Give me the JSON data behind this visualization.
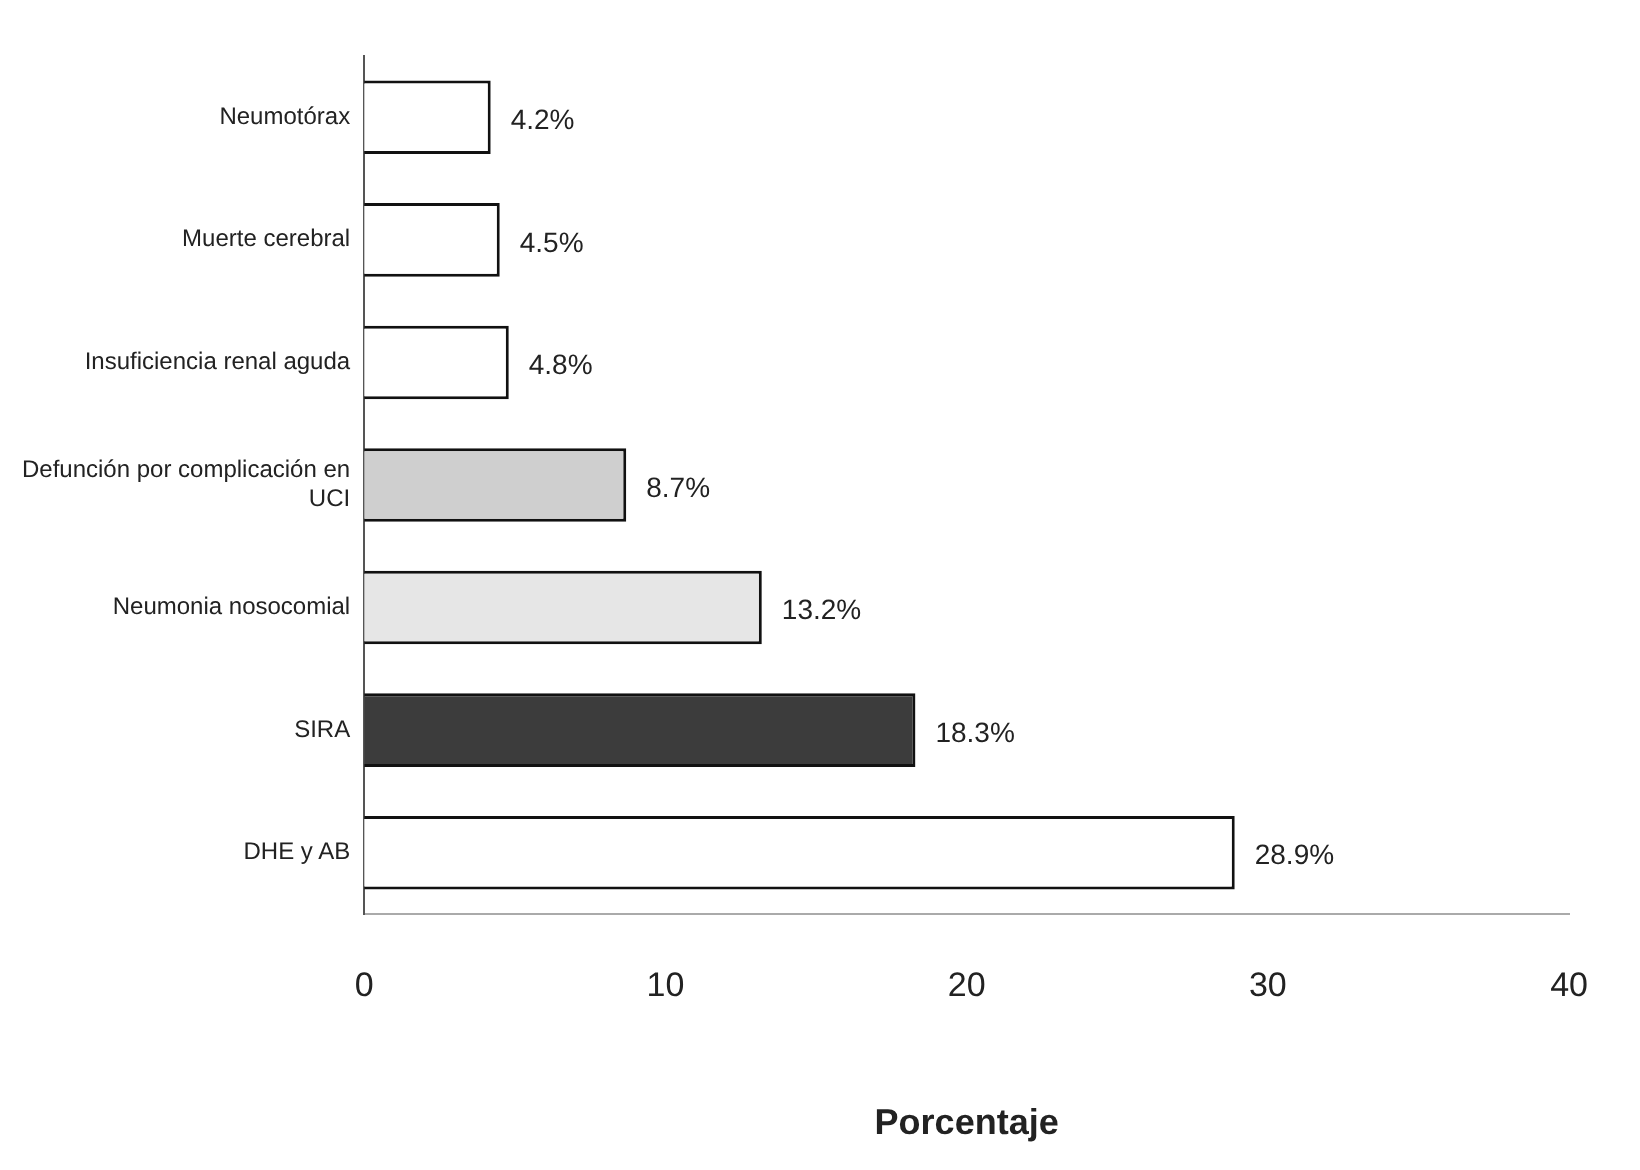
{
  "chart_data": {
    "type": "bar",
    "orientation": "horizontal",
    "xlabel": "Porcentaje",
    "categories": [
      "Neumotórax",
      "Muerte cerebral",
      "Insuficiencia renal aguda",
      "Defunción por complicación en UCI",
      "Neumonia nosocomial",
      "SIRA",
      "DHE y AB"
    ],
    "values": [
      4.2,
      4.5,
      4.8,
      8.7,
      13.2,
      18.3,
      28.9
    ],
    "colors": [
      "#ffffff",
      "#ffffff",
      "#ffffff",
      "#cfcfcf",
      "#e6e6e6",
      "#3c3c3c",
      "#ffffff"
    ],
    "value_labels": [
      "4.2%",
      "4.5%",
      "4.8%",
      "8.7%",
      "13.2%",
      "18.3%",
      "28.9%"
    ],
    "xlim": [
      0,
      40
    ],
    "xticks": [
      0,
      10,
      20,
      30,
      40
    ],
    "grid": false,
    "legend": false
  }
}
